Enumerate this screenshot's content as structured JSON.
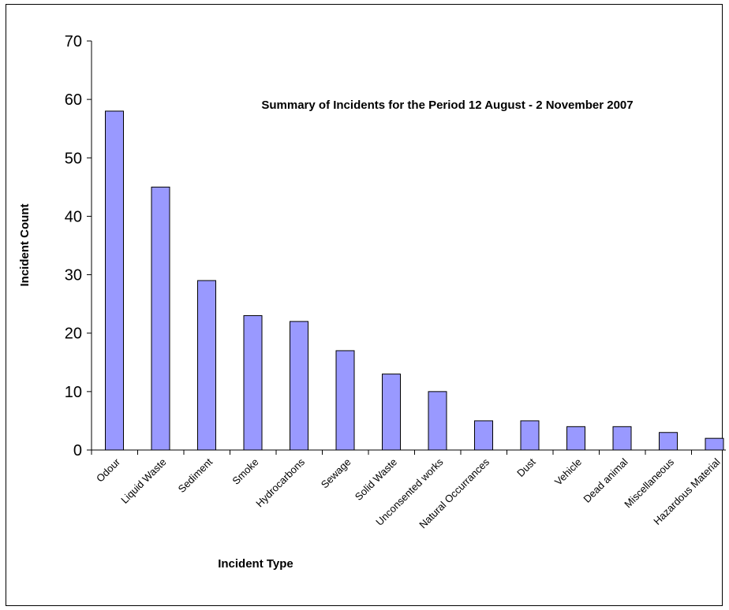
{
  "chart_data": {
    "type": "bar",
    "title": "Summary of Incidents for the Period 12 August -  2 November 2007",
    "xlabel": "Incident Type",
    "ylabel": "Incident Count",
    "ylim": [
      0,
      70
    ],
    "yticks": [
      0,
      10,
      20,
      30,
      40,
      50,
      60,
      70
    ],
    "categories": [
      "Odour",
      "Liquid Waste",
      "Sediment",
      "Smoke",
      "Hydrocarbons",
      "Sewage",
      "Solid Waste",
      "Unconsented works",
      "Natural Occurrances",
      "Dust",
      "Vehicle",
      "Dead animal",
      "Miscellaneous",
      "Hazardous Material"
    ],
    "values": [
      58,
      45,
      29,
      23,
      22,
      17,
      13,
      10,
      5,
      5,
      4,
      4,
      3,
      2
    ],
    "bar_color": "#9999ff",
    "grid": false,
    "legend": "none"
  }
}
